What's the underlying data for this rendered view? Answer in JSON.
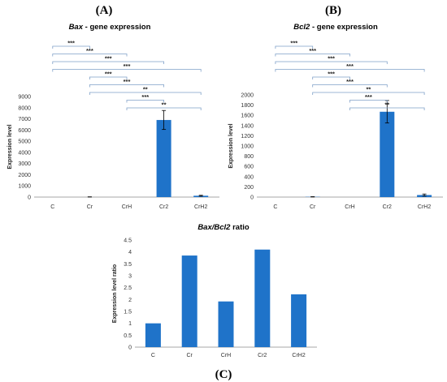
{
  "panel_labels": [
    "(A)",
    "(B)",
    "(C)"
  ],
  "chart_data": [
    {
      "type": "bar",
      "title": "Bax - gene expression",
      "title_italic_part": "Bax",
      "title_rest": " - gene expression",
      "categories": [
        "C",
        "Cr",
        "CrH",
        "Cr2",
        "CrH2"
      ],
      "values": [
        0,
        15,
        0,
        6900,
        120
      ],
      "errors": [
        0,
        10,
        0,
        850,
        40
      ],
      "ylabel": "Expression level",
      "ylim": [
        0,
        9000
      ],
      "yticks": [
        0,
        1000,
        2000,
        3000,
        4000,
        5000,
        6000,
        7000,
        8000,
        9000
      ],
      "bar_color": "#1f73c9",
      "significance": [
        {
          "from": "C",
          "to": "Cr",
          "label": "***"
        },
        {
          "from": "C",
          "to": "CrH",
          "label": "***"
        },
        {
          "from": "C",
          "to": "Cr2",
          "label": "***"
        },
        {
          "from": "C",
          "to": "CrH2",
          "label": "***"
        },
        {
          "from": "Cr",
          "to": "CrH",
          "label": "***"
        },
        {
          "from": "Cr",
          "to": "Cr2",
          "label": "***"
        },
        {
          "from": "Cr",
          "to": "CrH2",
          "label": "**"
        },
        {
          "from": "CrH",
          "to": "Cr2",
          "label": "***"
        },
        {
          "from": "CrH",
          "to": "CrH2",
          "label": "**"
        }
      ]
    },
    {
      "type": "bar",
      "title": "Bcl2 - gene expression",
      "title_italic_part": "Bcl2",
      "title_rest": " - gene expression",
      "categories": [
        "C",
        "Cr",
        "CrH",
        "Cr2",
        "CrH2"
      ],
      "values": [
        0,
        5,
        0,
        1670,
        40
      ],
      "errors": [
        0,
        3,
        0,
        220,
        20
      ],
      "ylabel": "Expression level",
      "ylim": [
        0,
        2000
      ],
      "yticks": [
        0,
        200,
        400,
        600,
        800,
        1000,
        1200,
        1400,
        1600,
        1800,
        2000
      ],
      "bar_color": "#1f73c9",
      "significance": [
        {
          "from": "C",
          "to": "Cr",
          "label": "***"
        },
        {
          "from": "C",
          "to": "CrH",
          "label": "***"
        },
        {
          "from": "C",
          "to": "Cr2",
          "label": "***"
        },
        {
          "from": "C",
          "to": "CrH2",
          "label": "***"
        },
        {
          "from": "Cr",
          "to": "CrH",
          "label": "***"
        },
        {
          "from": "Cr",
          "to": "Cr2",
          "label": "***"
        },
        {
          "from": "Cr",
          "to": "CrH2",
          "label": "**"
        },
        {
          "from": "CrH",
          "to": "Cr2",
          "label": "***"
        },
        {
          "from": "CrH",
          "to": "CrH2",
          "label": "**"
        }
      ]
    },
    {
      "type": "bar",
      "title": "Bax/Bcl2 ratio",
      "title_italic_part": "Bax/Bcl2",
      "title_rest": " ratio",
      "categories": [
        "C",
        "Cr",
        "CrH",
        "Cr2",
        "CrH2"
      ],
      "values": [
        1.0,
        3.85,
        1.92,
        4.1,
        2.22
      ],
      "ylabel": "Expression level ratio",
      "ylim": [
        0,
        4.5
      ],
      "yticks": [
        0,
        0.5,
        1,
        1.5,
        2,
        2.5,
        3,
        3.5,
        4,
        4.5
      ],
      "bar_color": "#1f73c9"
    }
  ]
}
